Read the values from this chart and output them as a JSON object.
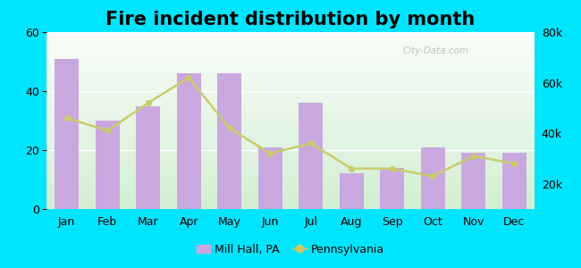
{
  "title": "Fire incident distribution by month",
  "months": [
    "Jan",
    "Feb",
    "Mar",
    "Apr",
    "May",
    "Jun",
    "Jul",
    "Aug",
    "Sep",
    "Oct",
    "Nov",
    "Dec"
  ],
  "mill_hall": [
    51,
    30,
    35,
    46,
    46,
    21,
    36,
    12,
    14,
    21,
    19,
    19
  ],
  "pa_right_axis": [
    46000,
    41000,
    52000,
    62000,
    42000,
    32000,
    36000,
    26000,
    26000,
    23000,
    31000,
    28000
  ],
  "bar_color": "#c9a8e0",
  "line_color": "#c8cc6a",
  "line_marker": "o",
  "background_top": "#f0faf0",
  "background_bottom": "#c8eac8",
  "outer_background": "#00e5ff",
  "left_ylim": [
    0,
    60
  ],
  "right_ylim": [
    10000,
    80000
  ],
  "left_yticks": [
    0,
    20,
    40,
    60
  ],
  "right_yticks": [
    20000,
    40000,
    60000,
    80000
  ],
  "right_yticklabels": [
    "20k",
    "40k",
    "60k",
    "80k"
  ],
  "legend_mill_hall": "Mill Hall, PA",
  "legend_pennsylvania": "Pennsylvania",
  "title_fontsize": 15,
  "tick_fontsize": 9,
  "legend_fontsize": 9
}
